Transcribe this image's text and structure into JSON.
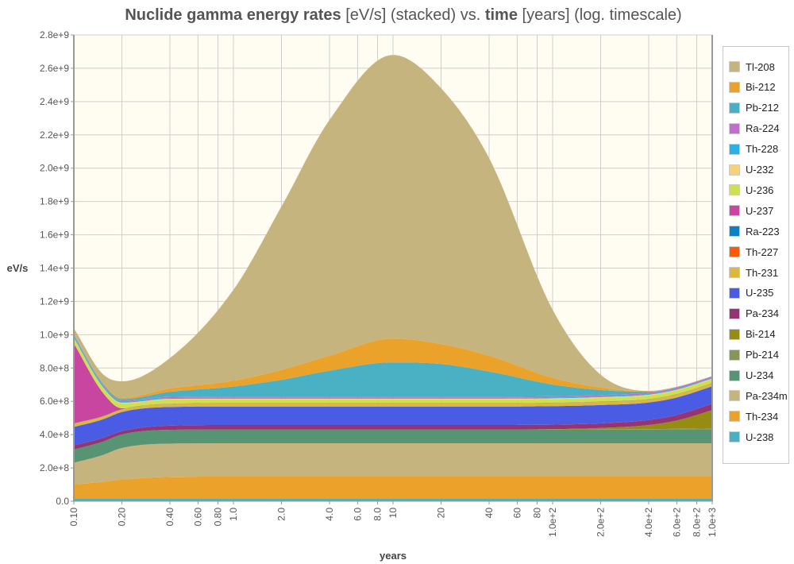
{
  "chart_data": {
    "type": "area",
    "stacked": true,
    "title_parts": [
      {
        "text": "Nuclide gamma energy rates",
        "bold": true
      },
      {
        "text": " [eV/s] (stacked) vs. ",
        "bold": false
      },
      {
        "text": "time",
        "bold": true
      },
      {
        "text": " [years] (log. timescale)",
        "bold": false
      }
    ],
    "xlabel": "years",
    "ylabel": "eV/s",
    "xscale": "log",
    "xlim": [
      0.1,
      1000
    ],
    "ylim": [
      0,
      2800000000.0
    ],
    "grid": true,
    "legend_position": "right",
    "background": "#fffcf2",
    "x_ticks": [
      0.1,
      0.2,
      0.4,
      0.6,
      0.8,
      1,
      2,
      4,
      6,
      8,
      10,
      20,
      40,
      60,
      80,
      100,
      200,
      400,
      600,
      800,
      1000
    ],
    "x_tick_labels": [
      "0.10",
      "0.20",
      "0.40",
      "0.60",
      "0.80",
      "1.0",
      "2.0",
      "4.0",
      "6.0",
      "8.0",
      "10",
      "20",
      "40",
      "60",
      "80",
      "1.0e+2",
      "2.0e+2",
      "4.0e+2",
      "6.0e+2",
      "8.0e+2",
      "1.0e+3"
    ],
    "y_ticks": [
      0,
      200000000.0,
      400000000.0,
      600000000.0,
      800000000.0,
      1000000000.0,
      1200000000.0,
      1400000000.0,
      1600000000.0,
      1800000000.0,
      2000000000.0,
      2200000000.0,
      2400000000.0,
      2600000000.0,
      2800000000.0
    ],
    "y_tick_labels": [
      "0.0",
      "2.0e+8",
      "4.0e+8",
      "6.0e+8",
      "8.0e+8",
      "1.0e+9",
      "1.2e+9",
      "1.4e+9",
      "1.6e+9",
      "1.8e+9",
      "2.0e+9",
      "2.2e+9",
      "2.4e+9",
      "2.6e+9",
      "2.8e+9"
    ],
    "x": [
      0.1,
      0.15,
      0.2,
      0.4,
      1,
      2,
      4,
      10,
      20,
      40,
      100,
      200,
      400,
      600,
      1000
    ],
    "series": [
      {
        "name": "U-238",
        "color": "#4ab0c4",
        "values": [
          16000000.0,
          16000000.0,
          16000000.0,
          16000000.0,
          16000000.0,
          16000000.0,
          16000000.0,
          16000000.0,
          16000000.0,
          16000000.0,
          16000000.0,
          16000000.0,
          16000000.0,
          16000000.0,
          16000000.0
        ]
      },
      {
        "name": "Th-234",
        "color": "#eaa22a",
        "values": [
          85000000.0,
          100000000.0,
          114000000.0,
          130000000.0,
          132000000.0,
          132000000.0,
          132000000.0,
          132000000.0,
          132000000.0,
          132000000.0,
          132000000.0,
          132000000.0,
          132000000.0,
          132000000.0,
          132000000.0
        ]
      },
      {
        "name": "Pa-234m",
        "color": "#c6b47f",
        "values": [
          130000000.0,
          160000000.0,
          190000000.0,
          200000000.0,
          200000000.0,
          200000000.0,
          200000000.0,
          200000000.0,
          200000000.0,
          200000000.0,
          200000000.0,
          200000000.0,
          200000000.0,
          200000000.0,
          200000000.0
        ]
      },
      {
        "name": "U-234",
        "color": "#569473",
        "values": [
          80000000.0,
          80000000.0,
          81000000.0,
          83000000.0,
          83000000.0,
          83000000.0,
          83000000.0,
          83000000.0,
          83000000.0,
          83000000.0,
          83000000.0,
          83000000.0,
          83000000.0,
          83000000.0,
          83000000.0
        ]
      },
      {
        "name": "Pb-214",
        "color": "#86955a",
        "values": [
          0,
          0,
          0,
          0,
          0,
          0,
          0,
          0,
          0,
          0,
          0,
          1000000.0,
          2000000.0,
          4000000.0,
          6000000.0
        ]
      },
      {
        "name": "Bi-214",
        "color": "#968c14",
        "values": [
          0,
          0,
          0,
          0,
          0,
          0,
          0,
          0,
          0,
          0,
          2000000.0,
          8000000.0,
          25000000.0,
          50000000.0,
          110000000.0
        ]
      },
      {
        "name": "Pa-234",
        "color": "#943474",
        "values": [
          25000000.0,
          22000000.0,
          20000000.0,
          25000000.0,
          27000000.0,
          27000000.0,
          27000000.0,
          27000000.0,
          27000000.0,
          27000000.0,
          27000000.0,
          28000000.0,
          30000000.0,
          33000000.0,
          38000000.0
        ]
      },
      {
        "name": "U-235",
        "color": "#4a5ce4",
        "values": [
          110000000.0,
          112000000.0,
          115000000.0,
          112000000.0,
          111000000.0,
          111000000.0,
          111000000.0,
          111000000.0,
          111000000.0,
          111000000.0,
          111000000.0,
          110000000.0,
          105000000.0,
          105000000.0,
          105000000.0
        ]
      },
      {
        "name": "Th-231",
        "color": "#dbb83c",
        "values": [
          20000000.0,
          17000000.0,
          15000000.0,
          18000000.0,
          19000000.0,
          19000000.0,
          19000000.0,
          19000000.0,
          19000000.0,
          19000000.0,
          19000000.0,
          19000000.0,
          19000000.0,
          19000000.0,
          19000000.0
        ]
      },
      {
        "name": "Th-227",
        "color": "#fa5a0a",
        "values": [
          1000000.0,
          1000000.0,
          1000000.0,
          1000000.0,
          1000000.0,
          1000000.0,
          1000000.0,
          1000000.0,
          1000000.0,
          1000000.0,
          1000000.0,
          1000000.0,
          1000000.0,
          1000000.0,
          1000000.0
        ]
      },
      {
        "name": "Ra-223",
        "color": "#0a82c8",
        "values": [
          1000000.0,
          1000000.0,
          1000000.0,
          1000000.0,
          1000000.0,
          1000000.0,
          1000000.0,
          1000000.0,
          1000000.0,
          1000000.0,
          1000000.0,
          1000000.0,
          1000000.0,
          1000000.0,
          1000000.0
        ]
      },
      {
        "name": "U-237",
        "color": "#c845a0",
        "values": [
          480000000.0,
          150000000.0,
          5000000.0,
          0,
          0,
          0,
          0,
          0,
          0,
          0,
          0,
          0,
          0,
          0,
          0
        ]
      },
      {
        "name": "U-236",
        "color": "#cfe04e",
        "values": [
          30000000.0,
          30000000.0,
          30000000.0,
          25000000.0,
          22000000.0,
          22000000.0,
          22000000.0,
          22000000.0,
          22000000.0,
          22000000.0,
          22000000.0,
          22000000.0,
          22000000.0,
          22000000.0,
          22000000.0
        ]
      },
      {
        "name": "U-232",
        "color": "#f8d07a",
        "values": [
          4000000.0,
          4000000.0,
          4000000.0,
          4000000.0,
          4000000.0,
          4000000.0,
          4000000.0,
          4000000.0,
          4000000.0,
          4000000.0,
          4000000.0,
          4000000.0,
          4000000.0,
          4000000.0,
          4000000.0
        ]
      },
      {
        "name": "Th-228",
        "color": "#2ab2e4",
        "values": [
          10000000.0,
          8000000.0,
          6000000.0,
          5000000.0,
          5000000.0,
          5000000.0,
          5000000.0,
          5000000.0,
          5000000.0,
          5000000.0,
          5000000.0,
          5000000.0,
          5000000.0,
          5000000.0,
          5000000.0
        ]
      },
      {
        "name": "Ra-224",
        "color": "#c070c8",
        "values": [
          5000000.0,
          5000000.0,
          5000000.0,
          7000000.0,
          8000000.0,
          8000000.0,
          8000000.0,
          8000000.0,
          8000000.0,
          8000000.0,
          8000000.0,
          8000000.0,
          8000000.0,
          8000000.0,
          8000000.0
        ]
      },
      {
        "name": "Pb-212",
        "color": "#4ab0c4",
        "values": [
          5000000.0,
          8000000.0,
          10000000.0,
          30000000.0,
          60000000.0,
          100000000.0,
          155000000.0,
          205000000.0,
          195000000.0,
          150000000.0,
          70000000.0,
          30000000.0,
          5000000.0,
          2000000.0,
          1000000.0
        ]
      },
      {
        "name": "Bi-212",
        "color": "#eaa22a",
        "values": [
          3000000.0,
          5000000.0,
          8000000.0,
          20000000.0,
          35000000.0,
          60000000.0,
          90000000.0,
          143000000.0,
          120000000.0,
          95000000.0,
          40000000.0,
          15000000.0,
          2000000.0,
          1000000.0,
          0
        ]
      },
      {
        "name": "Tl-208",
        "color": "#c6b47f",
        "values": [
          35000000.0,
          50000000.0,
          99000000.0,
          183000000.0,
          546000000.0,
          981000000.0,
          1416000000.0,
          1703000000.0,
          1536000000.0,
          1186000000.0,
          409000000.0,
          77000000.0,
          3000000.0,
          2000000.0,
          0
        ]
      }
    ],
    "legend_order": [
      "Tl-208",
      "Bi-212",
      "Pb-212",
      "Ra-224",
      "Th-228",
      "U-232",
      "U-236",
      "U-237",
      "Ra-223",
      "Th-227",
      "Th-231",
      "U-235",
      "Pa-234",
      "Bi-214",
      "Pb-214",
      "U-234",
      "Pa-234m",
      "Th-234",
      "U-238"
    ]
  }
}
